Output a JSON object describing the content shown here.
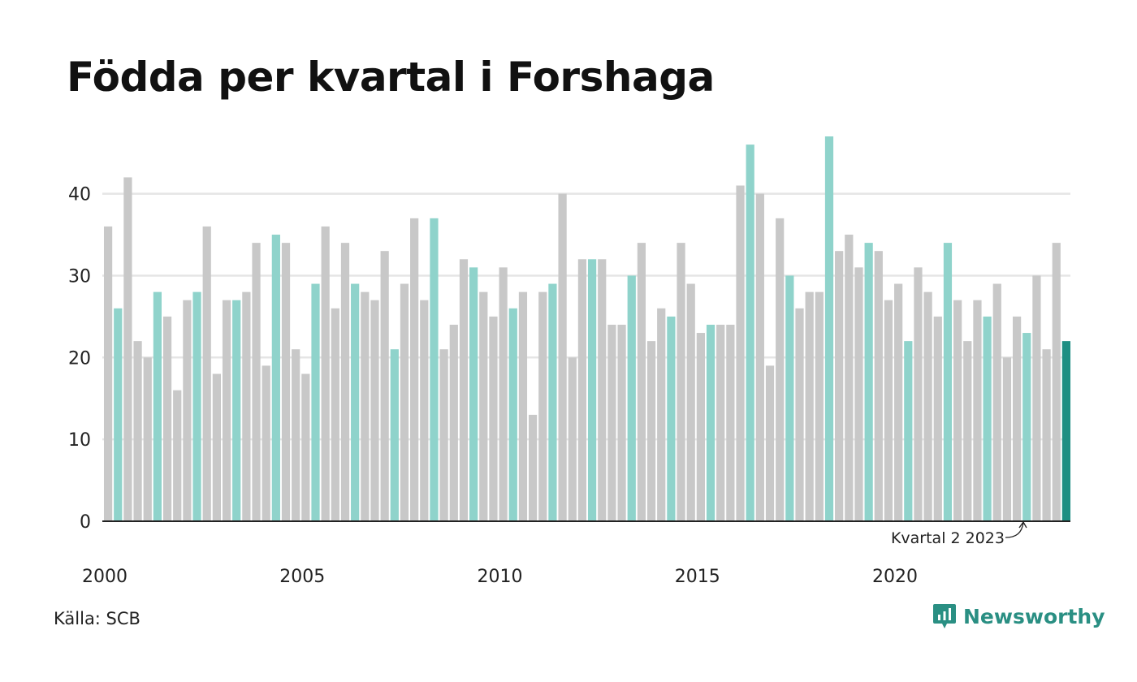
{
  "title": "Födda per kvartal i Forshaga",
  "source": "Källa: SCB",
  "brand": "Newsworthy",
  "colors": {
    "bar_default": "#c8c8c8",
    "bar_q2": "#8fd3cb",
    "bar_latest": "#1f8f83",
    "grid": "#e5e5e5",
    "axis": "#222222",
    "brand": "#2a8f83"
  },
  "chart_data": {
    "type": "bar",
    "title": "Födda per kvartal i Forshaga",
    "xlabel": "",
    "ylabel": "",
    "ylim": [
      0,
      47
    ],
    "grid": true,
    "yticks": [
      0,
      10,
      20,
      30,
      40
    ],
    "xticks": [
      "2000",
      "2005",
      "2010",
      "2015",
      "2020"
    ],
    "start": "2000 Q1",
    "annotation": "Kvartal 2 2023",
    "highlight": "second quarter of each year",
    "values": [
      36,
      26,
      42,
      22,
      20,
      28,
      25,
      16,
      27,
      28,
      36,
      18,
      27,
      27,
      28,
      34,
      19,
      35,
      34,
      21,
      18,
      29,
      36,
      26,
      34,
      29,
      28,
      27,
      33,
      21,
      29,
      37,
      27,
      37,
      21,
      24,
      32,
      31,
      28,
      25,
      31,
      26,
      28,
      13,
      28,
      29,
      40,
      20,
      32,
      32,
      32,
      24,
      24,
      30,
      34,
      22,
      26,
      25,
      34,
      29,
      23,
      24,
      24,
      24,
      41,
      46,
      40,
      19,
      37,
      30,
      26,
      28,
      28,
      47,
      33,
      35,
      31,
      34,
      33,
      27,
      29,
      22,
      31,
      28,
      25,
      34,
      27,
      22,
      27,
      25,
      29,
      20,
      25,
      23,
      30,
      21,
      34,
      22
    ]
  }
}
